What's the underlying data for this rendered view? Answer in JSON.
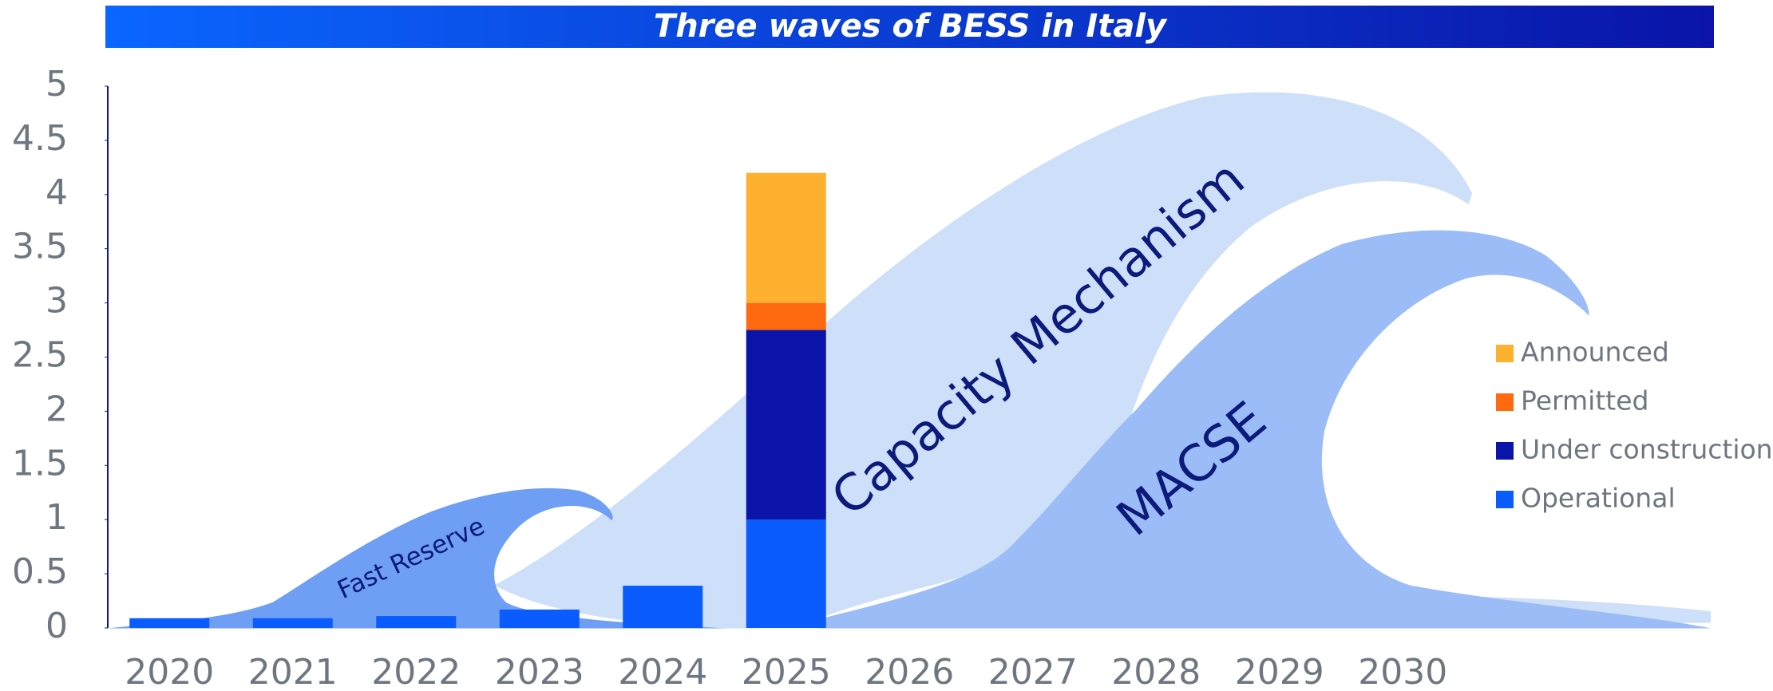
{
  "chart_data": {
    "type": "bar",
    "stacked": true,
    "title": "Three waves of BESS in Italy",
    "categories": [
      "2020",
      "2021",
      "2022",
      "2023",
      "2024",
      "2025",
      "2026",
      "2027",
      "2028",
      "2029",
      "2030"
    ],
    "series": [
      {
        "name": "Operational",
        "color": "#0a5cff",
        "values": [
          0.09,
          0.09,
          0.11,
          0.17,
          0.39,
          1.0,
          null,
          null,
          null,
          null,
          null
        ]
      },
      {
        "name": "Under construction",
        "color": "#0a14a8",
        "values": [
          null,
          null,
          null,
          null,
          null,
          1.75,
          null,
          null,
          null,
          null,
          null
        ]
      },
      {
        "name": "Permitted",
        "color": "#ff6a10",
        "values": [
          null,
          null,
          null,
          null,
          null,
          0.25,
          null,
          null,
          null,
          null,
          null
        ]
      },
      {
        "name": "Announced",
        "color": "#fdb12f",
        "values": [
          null,
          null,
          null,
          null,
          null,
          1.2,
          null,
          null,
          null,
          null,
          null
        ]
      }
    ],
    "annotations": [
      "Fast Reserve",
      "Capacity Mechanism",
      "MACSE"
    ],
    "ylim": [
      0,
      5
    ],
    "yticks": [
      0,
      0.5,
      1,
      1.5,
      2,
      2.5,
      3,
      3.5,
      4,
      4.5,
      5
    ],
    "grid": false,
    "legend": "right"
  }
}
